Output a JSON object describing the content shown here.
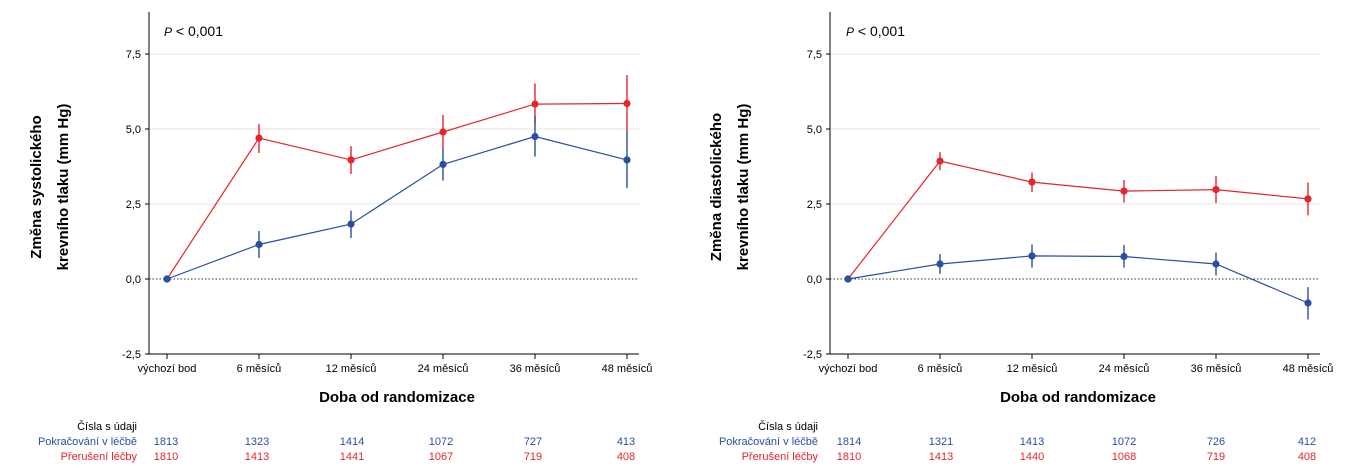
{
  "colors": {
    "continue": "#2b4ea2",
    "stop": "#e3262b",
    "axis": "#000000"
  },
  "chart_data": [
    {
      "type": "line",
      "p_value_prefix": "P",
      "p_value_text": " < 0,001",
      "ylabel": [
        "Změna systolického",
        "krevního tlaku (mm Hg)"
      ],
      "xlabel": "Doba od randomizace",
      "categories": [
        "výchozí bod",
        "6 měsíců",
        "12 měsíců",
        "24 měsíců",
        "36 měsíců",
        "48 měsíců"
      ],
      "ylim": [
        -2.5,
        8.9
      ],
      "yticks": [
        -2.5,
        0.0,
        2.5,
        5.0,
        7.5
      ],
      "ytick_labels": [
        "-2,5",
        "0,0",
        "2,5",
        "5,0",
        "7,5"
      ],
      "series": [
        {
          "name": "Přerušení léčby",
          "color": "#e3262b",
          "values": [
            0.0,
            4.7,
            3.97,
            4.9,
            5.83,
            5.85
          ],
          "err_low": [
            0.0,
            4.2,
            3.5,
            4.35,
            5.15,
            4.9
          ],
          "err_high": [
            0.0,
            5.17,
            4.43,
            5.47,
            6.52,
            6.8
          ]
        },
        {
          "name": "Pokračování v léčbě",
          "color": "#2b4ea2",
          "values": [
            0.0,
            1.15,
            1.83,
            3.82,
            4.75,
            3.97
          ],
          "err_low": [
            0.0,
            0.7,
            1.37,
            3.28,
            4.08,
            3.03
          ],
          "err_high": [
            0.0,
            1.6,
            2.28,
            4.35,
            5.42,
            4.92
          ]
        }
      ],
      "table": {
        "header": "Čísla s údaji",
        "rows": [
          {
            "label": "Pokračování v léčbě",
            "color": "#2b4ea2",
            "values": [
              "1813",
              "1323",
              "1414",
              "1072",
              "727",
              "413"
            ]
          },
          {
            "label": "Přerušení léčby",
            "color": "#e3262b",
            "values": [
              "1810",
              "1413",
              "1441",
              "1067",
              "719",
              "408"
            ]
          }
        ]
      }
    },
    {
      "type": "line",
      "p_value_prefix": "P",
      "p_value_text": " < 0,001",
      "ylabel": [
        "Změna diastolického",
        "krevního tlaku (mm Hg)"
      ],
      "xlabel": "Doba od randomizace",
      "categories": [
        "výchozí bod",
        "6 měsíců",
        "12 měsíců",
        "24 měsíců",
        "36 měsíců",
        "48 měsíců"
      ],
      "ylim": [
        -2.5,
        8.9
      ],
      "yticks": [
        -2.5,
        0.0,
        2.5,
        5.0,
        7.5
      ],
      "ytick_labels": [
        "-2,5",
        "0,0",
        "2,5",
        "5,0",
        "7,5"
      ],
      "series": [
        {
          "name": "Přerušení léčby",
          "color": "#e3262b",
          "values": [
            0.0,
            3.93,
            3.23,
            2.93,
            2.98,
            2.67
          ],
          "err_low": [
            0.0,
            3.63,
            2.9,
            2.55,
            2.53,
            2.12
          ],
          "err_high": [
            0.0,
            4.23,
            3.55,
            3.3,
            3.43,
            3.22
          ]
        },
        {
          "name": "Pokračování v léčbě",
          "color": "#2b4ea2",
          "values": [
            0.0,
            0.5,
            0.77,
            0.75,
            0.5,
            -0.8
          ],
          "err_low": [
            0.0,
            0.17,
            0.38,
            0.38,
            0.12,
            -1.35
          ],
          "err_high": [
            0.0,
            0.83,
            1.15,
            1.13,
            0.88,
            -0.27
          ]
        }
      ],
      "table": {
        "header": "Čísla s údaji",
        "rows": [
          {
            "label": "Pokračování v léčbě",
            "color": "#2b4ea2",
            "values": [
              "1814",
              "1321",
              "1413",
              "1072",
              "726",
              "412"
            ]
          },
          {
            "label": "Přerušení léčby",
            "color": "#e3262b",
            "values": [
              "1810",
              "1413",
              "1440",
              "1068",
              "719",
              "408"
            ]
          }
        ]
      }
    }
  ]
}
